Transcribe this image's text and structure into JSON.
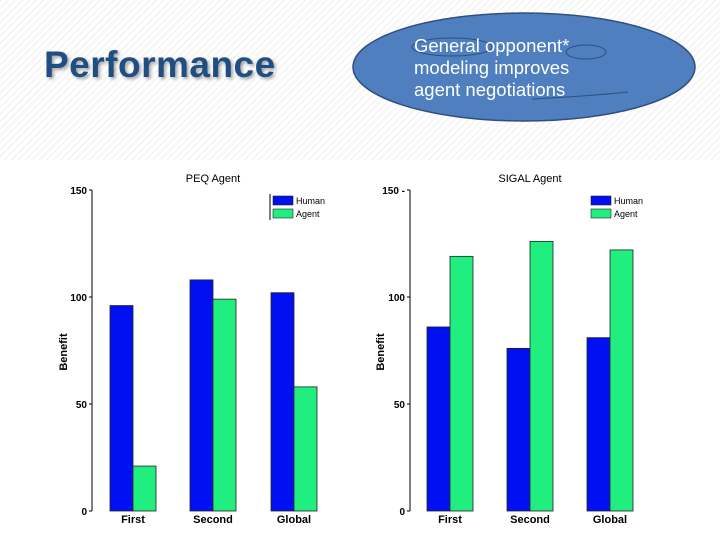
{
  "slide": {
    "title": "Performance",
    "callout_lines": [
      "General opponent*",
      "modeling improves",
      "agent negotiations"
    ]
  },
  "colors": {
    "human": "#0010f0",
    "agent": "#20ee7e",
    "title": "#1f4f82",
    "callout_fill": "#4f7fbf",
    "callout_stroke": "#2f4f7f"
  },
  "chart_data": [
    {
      "type": "bar",
      "title": "PEQ Agent",
      "ylabel": "Benefit",
      "xlabel": "",
      "ylim": [
        0,
        150
      ],
      "yticks": [
        "0",
        "50",
        "100",
        "150"
      ],
      "categories": [
        "First",
        "Second",
        "Global"
      ],
      "series": [
        {
          "name": "Human",
          "values": [
            96,
            108,
            102
          ]
        },
        {
          "name": "Agent",
          "values": [
            21,
            99,
            58
          ]
        }
      ],
      "legend": "top-right",
      "grid": false
    },
    {
      "type": "bar",
      "title": "SIGAL Agent",
      "ylabel": "Benefit",
      "xlabel": "",
      "ylim": [
        0,
        150
      ],
      "yticks": [
        "0",
        "50",
        "100",
        "150 -"
      ],
      "categories": [
        "First",
        "Second",
        "Global"
      ],
      "series": [
        {
          "name": "Human",
          "values": [
            86,
            76,
            81
          ]
        },
        {
          "name": "Agent",
          "values": [
            119,
            126,
            122
          ]
        }
      ],
      "legend": "top-right",
      "grid": false
    }
  ]
}
